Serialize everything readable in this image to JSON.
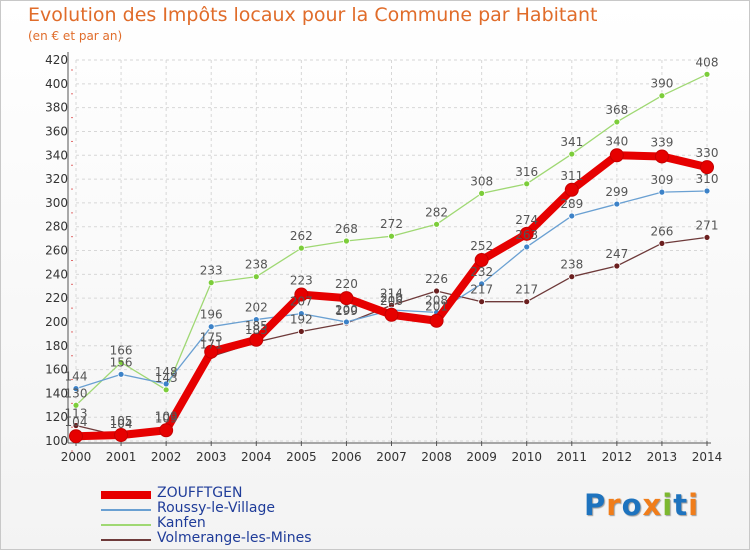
{
  "title": "Evolution des Impôts locaux pour la Commune par Habitant",
  "subtitle": "(en € et par an)",
  "logo": {
    "text": "Proxiti",
    "letter_colors": [
      "#1e73be",
      "#f07d1a",
      "#1e73be",
      "#f07d1a",
      "#7cb82f",
      "#1e73be",
      "#f07d1a"
    ]
  },
  "chart_data": {
    "type": "line",
    "title": "Evolution des Impôts locaux pour la Commune par Habitant",
    "subtitle": "(en € et par an)",
    "xlabel": "",
    "ylabel": "",
    "x": [
      2000,
      2001,
      2002,
      2003,
      2004,
      2005,
      2006,
      2007,
      2008,
      2009,
      2010,
      2011,
      2012,
      2013,
      2014
    ],
    "yticks": [
      100,
      120,
      140,
      160,
      180,
      200,
      220,
      240,
      260,
      280,
      300,
      320,
      340,
      360,
      380,
      400,
      420
    ],
    "ylim": [
      100,
      420
    ],
    "grid": true,
    "legend_position": "bottom-left",
    "series": [
      {
        "name": "Volmerange-les-Mines",
        "color": "#6b1f1f",
        "line_color": "#6e3a3a",
        "values": [
          113,
          104,
          109,
          171,
          183,
          192,
          199,
          214,
          226,
          217,
          217,
          238,
          247,
          266,
          271
        ]
      },
      {
        "name": "Kanfen",
        "color": "#7ccd3a",
        "line_color": "#9fd873",
        "values": [
          130,
          166,
          143,
          233,
          238,
          262,
          268,
          272,
          282,
          308,
          316,
          341,
          368,
          390,
          408
        ]
      },
      {
        "name": "Roussy-le-Village",
        "color": "#3c82c8",
        "line_color": "#6aa0d2",
        "values": [
          144,
          156,
          148,
          196,
          202,
          207,
          200,
          210,
          208,
          232,
          263,
          289,
          299,
          309,
          310
        ]
      },
      {
        "name": "ZOUFFTGEN",
        "color": "#e60000",
        "line_color": "#e60000",
        "values": [
          104,
          105,
          109,
          175,
          185,
          223,
          220,
          206,
          201,
          252,
          274,
          311,
          340,
          339,
          330
        ]
      }
    ],
    "data_labels": [
      [
        113,
        104,
        109,
        171,
        183,
        192,
        199,
        214,
        226,
        217,
        217,
        238,
        247,
        266,
        271
      ],
      [
        130,
        166,
        143,
        233,
        238,
        262,
        268,
        272,
        282,
        308,
        316,
        341,
        368,
        390,
        408
      ],
      [
        144,
        156,
        148,
        196,
        202,
        207,
        200,
        210,
        208,
        232,
        263,
        289,
        299,
        309,
        310
      ],
      [
        104,
        105,
        109,
        175,
        185,
        223,
        220,
        206,
        201,
        252,
        274,
        311,
        340,
        339,
        330
      ]
    ],
    "legend": [
      "ZOUFFTGEN",
      "Roussy-le-Village",
      "Kanfen",
      "Volmerange-les-Mines"
    ]
  }
}
